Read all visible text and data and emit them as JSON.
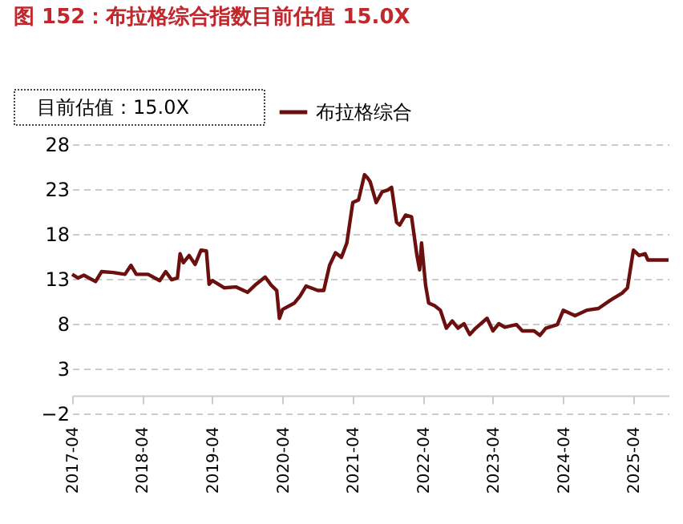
{
  "chart_data": {
    "type": "line",
    "title": "图 152：布拉格综合指数目前估值 15.0X",
    "annotations": [
      "目前估值：15.0X"
    ],
    "x": [
      "2017-04",
      "2017-05",
      "2017-06",
      "2017-08",
      "2017-09",
      "2017-11",
      "2018-01",
      "2018-02",
      "2018-03",
      "2018-05",
      "2018-07",
      "2018-08",
      "2018-09",
      "2018-10",
      "2018-10-15",
      "2018-11",
      "2018-12",
      "2019-01",
      "2019-02",
      "2019-03",
      "2019-03-15",
      "2019-04",
      "2019-06",
      "2019-08",
      "2019-10",
      "2019-11-15",
      "2020-01",
      "2020-02",
      "2020-03",
      "2020-03-15",
      "2020-04",
      "2020-06",
      "2020-07",
      "2020-08",
      "2020-10",
      "2020-11",
      "2020-12",
      "2021-01",
      "2021-02",
      "2021-03",
      "2021-04",
      "2021-05",
      "2021-06",
      "2021-06-15",
      "2021-07",
      "2021-08",
      "2021-09",
      "2021-10",
      "2021-10-20",
      "2021-11-15",
      "2021-12",
      "2022-01",
      "2022-02",
      "2022-03",
      "2022-03-15",
      "2022-03-25",
      "2022-04-15",
      "2022-05",
      "2022-06",
      "2022-07",
      "2022-08",
      "2022-09",
      "2022-10",
      "2022-11",
      "2022-12",
      "2023-01",
      "2023-03",
      "2023-04",
      "2023-05",
      "2023-06",
      "2023-08",
      "2023-09",
      "2023-11",
      "2023-12",
      "2024-01",
      "2024-03",
      "2024-04",
      "2024-06",
      "2024-08",
      "2024-10",
      "2024-12",
      "2025-02",
      "2025-03",
      "2025-04",
      "2025-05",
      "2025-06",
      "2025-06-15",
      "2025-10"
    ],
    "series": [
      {
        "name": "布拉格综合",
        "color": "#6b0f0f",
        "values": [
          13.5,
          13.1,
          13.4,
          12.7,
          13.8,
          13.7,
          13.5,
          14.5,
          13.5,
          13.5,
          12.8,
          13.8,
          12.9,
          13.1,
          15.8,
          14.8,
          15.6,
          14.6,
          16.2,
          16.1,
          12.4,
          12.8,
          12.0,
          12.1,
          11.5,
          12.4,
          13.2,
          12.3,
          11.7,
          8.6,
          9.6,
          10.3,
          11.1,
          12.2,
          11.7,
          11.7,
          14.5,
          15.9,
          15.4,
          17.0,
          21.5,
          21.8,
          24.6,
          24.3,
          23.8,
          21.5,
          22.7,
          22.9,
          23.2,
          19.3,
          19.0,
          20.1,
          19.9,
          15.6,
          14.0,
          17.0,
          12.3,
          10.3,
          10.0,
          9.5,
          7.5,
          8.3,
          7.5,
          8.0,
          6.8,
          7.5,
          8.6,
          7.2,
          8.0,
          7.6,
          7.9,
          7.2,
          7.2,
          6.7,
          7.5,
          7.9,
          9.5,
          8.9,
          9.5,
          9.7,
          10.6,
          11.4,
          12.0,
          16.2,
          15.6,
          15.8,
          15.1,
          15.1
        ]
      }
    ],
    "xlim": [
      "2017-04",
      "2025-10"
    ],
    "xticks": [
      "2017-04",
      "2018-04",
      "2019-04",
      "2020-04",
      "2021-04",
      "2022-04",
      "2023-04",
      "2024-04",
      "2025-04"
    ],
    "ylim": [
      -2,
      28
    ],
    "yticks": [
      -2,
      3,
      8,
      13,
      18,
      23,
      28
    ],
    "grid": "y",
    "legend": "top",
    "line_style": "solid"
  }
}
